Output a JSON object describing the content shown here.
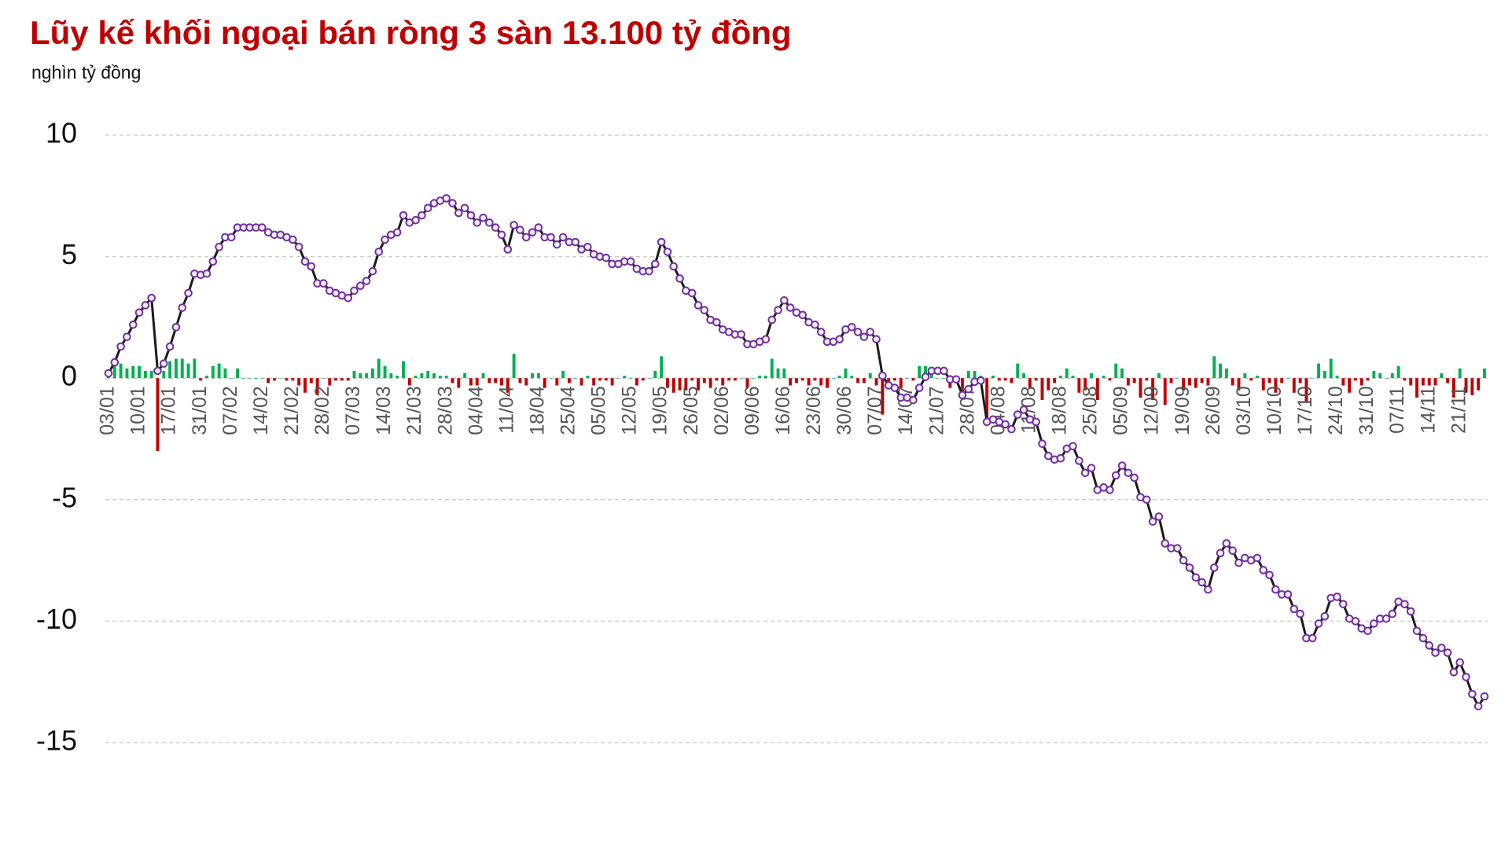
{
  "chart_data": {
    "type": "combo",
    "title": "Lũy kế khối ngoại bán ròng 3 sàn 13.100 tỷ đồng",
    "subtitle": "nghìn tỷ đồng",
    "categories": [
      "03/01",
      null,
      null,
      null,
      null,
      "10/01",
      null,
      null,
      null,
      null,
      "17/01",
      null,
      null,
      null,
      null,
      "31/01",
      null,
      null,
      null,
      null,
      "07/02",
      null,
      null,
      null,
      null,
      "14/02",
      null,
      null,
      null,
      null,
      "21/02",
      null,
      null,
      null,
      null,
      "28/02",
      null,
      null,
      null,
      null,
      "07/03",
      null,
      null,
      null,
      null,
      "14/03",
      null,
      null,
      null,
      null,
      "21/03",
      null,
      null,
      null,
      null,
      "28/03",
      null,
      null,
      null,
      null,
      "04/04",
      null,
      null,
      null,
      null,
      "11/04",
      null,
      null,
      null,
      null,
      "18/04",
      null,
      null,
      null,
      null,
      "25/04",
      null,
      null,
      null,
      null,
      "05/05",
      null,
      null,
      null,
      null,
      "12/05",
      null,
      null,
      null,
      null,
      "19/05",
      null,
      null,
      null,
      null,
      "26/05",
      null,
      null,
      null,
      null,
      "02/06",
      null,
      null,
      null,
      null,
      "09/06",
      null,
      null,
      null,
      null,
      "16/06",
      null,
      null,
      null,
      null,
      "23/06",
      null,
      null,
      null,
      null,
      "30/06",
      null,
      null,
      null,
      null,
      "07/07",
      null,
      null,
      null,
      null,
      "14/07",
      null,
      null,
      null,
      null,
      "21/07",
      null,
      null,
      null,
      null,
      "28/07",
      null,
      null,
      null,
      null,
      "04/08",
      null,
      null,
      null,
      null,
      "11/08",
      null,
      null,
      null,
      null,
      "18/08",
      null,
      null,
      null,
      null,
      "25/08",
      null,
      null,
      null,
      null,
      "05/09",
      null,
      null,
      null,
      null,
      "12/09",
      null,
      null,
      null,
      null,
      "19/09",
      null,
      null,
      null,
      null,
      "26/09",
      null,
      null,
      null,
      null,
      "03/10",
      null,
      null,
      null,
      null,
      "10/10",
      null,
      null,
      null,
      null,
      "17/10",
      null,
      null,
      null,
      null,
      "24/10",
      null,
      null,
      null,
      null,
      "31/10",
      null,
      null,
      null,
      null,
      "07/11",
      null,
      null,
      null,
      null,
      "14/11",
      null,
      null,
      null,
      null,
      "21/11",
      null,
      null,
      null,
      null
    ],
    "series": [
      {
        "type": "bar",
        "color": "#00b050",
        "negative_color": "#c00000",
        "values": [
          0.2,
          0.5,
          0.6,
          0.4,
          0.5,
          0.5,
          0.3,
          0.3,
          -3.0,
          0.3,
          0.7,
          0.8,
          0.8,
          0.6,
          0.8,
          -0.1,
          0.1,
          0.5,
          0.6,
          0.4,
          0,
          0.4,
          0,
          0,
          0,
          0,
          -0.2,
          -0.1,
          0,
          -0.1,
          -0.1,
          -0.3,
          -0.6,
          -0.2,
          -0.7,
          0,
          -0.3,
          -0.1,
          -0.1,
          -0.1,
          0.3,
          0.2,
          0.2,
          0.4,
          0.8,
          0.5,
          0.2,
          0.1,
          0.7,
          -0.3,
          0.1,
          0.2,
          0.3,
          0.2,
          0.1,
          0.1,
          -0.2,
          -0.4,
          0.2,
          -0.3,
          -0.3,
          0.2,
          -0.2,
          -0.2,
          -0.3,
          -0.6,
          1.0,
          -0.2,
          -0.3,
          0.2,
          0.2,
          -0.4,
          0,
          -0.3,
          0.3,
          -0.2,
          0,
          -0.3,
          0.1,
          -0.3,
          -0.1,
          -0.1,
          -0.3,
          0,
          0.1,
          0,
          -0.3,
          -0.1,
          0,
          0.3,
          0.9,
          -0.4,
          -0.6,
          -0.5,
          -0.5,
          -0.1,
          -0.5,
          -0.2,
          -0.4,
          -0.1,
          -0.3,
          -0.1,
          -0.1,
          0,
          -0.4,
          0,
          0.1,
          0.1,
          0.8,
          0.4,
          0.4,
          -0.3,
          -0.2,
          -0.1,
          -0.3,
          -0.1,
          -0.3,
          -0.4,
          0,
          0.1,
          0.4,
          0.1,
          -0.2,
          -0.2,
          0.2,
          -0.3,
          -1.5,
          -0.4,
          -0.1,
          -0.4,
          0,
          -0.1,
          0.5,
          0.5,
          0.3,
          0,
          0,
          -0.4,
          0,
          -0.7,
          0.3,
          0.3,
          0.1,
          -1.7,
          0.1,
          -0.1,
          -0.1,
          -0.2,
          0.6,
          0.2,
          -0.4,
          -0.1,
          -0.9,
          -0.5,
          -0.2,
          0.1,
          0.4,
          0.1,
          -0.6,
          -0.5,
          0.2,
          -0.9,
          0.1,
          -0.1,
          0.6,
          0.4,
          -0.3,
          -0.2,
          -0.8,
          -0.1,
          -0.9,
          0.2,
          -1.1,
          -0.2,
          0,
          -0.5,
          -0.3,
          -0.4,
          -0.2,
          -0.3,
          0.9,
          0.6,
          0.4,
          -0.3,
          -0.5,
          0.2,
          -0.1,
          0.1,
          -0.5,
          -0.2,
          -0.6,
          -0.2,
          0,
          -0.6,
          -0.2,
          -1.0,
          0,
          0.6,
          0.3,
          0.8,
          0.1,
          -0.3,
          -0.6,
          -0.1,
          -0.3,
          -0.1,
          0.3,
          0.2,
          0,
          0.2,
          0.5,
          -0.1,
          -0.3,
          -0.8,
          -0.3,
          -0.3,
          -0.3,
          0.2,
          -0.2,
          -0.8,
          0.4,
          -0.6,
          -0.7,
          -0.5,
          0.4
        ]
      },
      {
        "type": "line",
        "color": "#1a1a1a",
        "marker_color": "#7030a0",
        "values": [
          0.2,
          0.65,
          1.3,
          1.7,
          2.2,
          2.7,
          3.0,
          3.3,
          0.3,
          0.6,
          1.3,
          2.1,
          2.9,
          3.5,
          4.3,
          4.25,
          4.3,
          4.8,
          5.4,
          5.8,
          5.8,
          6.2,
          6.2,
          6.2,
          6.2,
          6.2,
          6.0,
          5.9,
          5.9,
          5.8,
          5.7,
          5.4,
          4.8,
          4.6,
          3.9,
          3.9,
          3.6,
          3.5,
          3.4,
          3.3,
          3.6,
          3.8,
          4.0,
          4.4,
          5.2,
          5.7,
          5.9,
          6.0,
          6.7,
          6.4,
          6.5,
          6.7,
          7.0,
          7.2,
          7.3,
          7.4,
          7.2,
          6.8,
          7.0,
          6.7,
          6.4,
          6.6,
          6.4,
          6.2,
          5.9,
          5.3,
          6.3,
          6.1,
          5.8,
          6.0,
          6.2,
          5.8,
          5.8,
          5.5,
          5.8,
          5.6,
          5.6,
          5.3,
          5.4,
          5.1,
          5.0,
          4.95,
          4.7,
          4.7,
          4.8,
          4.8,
          4.5,
          4.4,
          4.4,
          4.7,
          5.6,
          5.2,
          4.6,
          4.1,
          3.6,
          3.5,
          3.0,
          2.8,
          2.4,
          2.3,
          2.0,
          1.9,
          1.8,
          1.8,
          1.4,
          1.4,
          1.5,
          1.6,
          2.4,
          2.8,
          3.2,
          2.9,
          2.7,
          2.6,
          2.3,
          2.2,
          1.9,
          1.5,
          1.5,
          1.6,
          2.0,
          2.1,
          1.9,
          1.7,
          1.9,
          1.6,
          0.1,
          -0.3,
          -0.4,
          -0.8,
          -0.8,
          -0.9,
          -0.4,
          0.05,
          0.3,
          0.3,
          0.3,
          -0.05,
          -0.05,
          -0.7,
          -0.45,
          -0.15,
          -0.1,
          -1.8,
          -1.7,
          -1.8,
          -1.9,
          -2.1,
          -1.5,
          -1.3,
          -1.7,
          -1.8,
          -2.7,
          -3.2,
          -3.35,
          -3.3,
          -2.9,
          -2.8,
          -3.4,
          -3.9,
          -3.7,
          -4.6,
          -4.5,
          -4.6,
          -4.0,
          -3.6,
          -3.9,
          -4.1,
          -4.9,
          -5.0,
          -5.9,
          -5.7,
          -6.8,
          -7.0,
          -7.0,
          -7.5,
          -7.8,
          -8.2,
          -8.4,
          -8.7,
          -7.8,
          -7.2,
          -6.8,
          -7.1,
          -7.6,
          -7.4,
          -7.5,
          -7.4,
          -7.9,
          -8.1,
          -8.7,
          -8.9,
          -8.9,
          -9.5,
          -9.7,
          -10.7,
          -10.7,
          -10.1,
          -9.8,
          -9.05,
          -9.0,
          -9.3,
          -9.9,
          -10.0,
          -10.3,
          -10.4,
          -10.1,
          -9.9,
          -9.9,
          -9.7,
          -9.2,
          -9.3,
          -9.6,
          -10.4,
          -10.7,
          -11.0,
          -11.3,
          -11.1,
          -11.3,
          -12.1,
          -11.7,
          -12.3,
          -13.0,
          -13.5,
          -13.1
        ]
      }
    ],
    "ylim": [
      -15,
      10
    ],
    "yticks": [
      -15,
      -10,
      -5,
      0,
      5,
      10
    ],
    "grid": true
  }
}
